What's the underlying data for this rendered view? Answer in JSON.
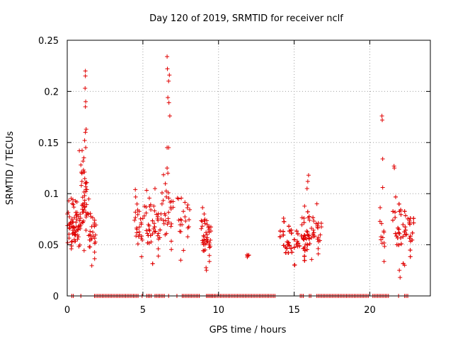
{
  "chart_data": {
    "type": "scatter",
    "title": "Day 120 of 2019, SRMTID for receiver nclf",
    "xlabel": "GPS time / hours",
    "ylabel": "SRMTID / TECUs",
    "xlim": [
      0,
      24
    ],
    "ylim": [
      0,
      0.25
    ],
    "xticks": [
      0,
      5,
      10,
      15,
      20
    ],
    "yticks": [
      0,
      0.05,
      0.1,
      0.15,
      0.2,
      0.25
    ],
    "xtick_labels": [
      "0",
      "5",
      "10",
      "15",
      "20"
    ],
    "ytick_labels": [
      "0",
      "0.05",
      "0.1",
      "0.15",
      "0.2",
      "0.25"
    ],
    "grid": true,
    "marker": "plus",
    "color": "#e00000",
    "clusters": [
      {
        "x_range": [
          0.0,
          0.9
        ],
        "y_center": 0.072,
        "y_spread": 0.02,
        "count": 70
      },
      {
        "x_range": [
          0.9,
          1.3
        ],
        "y_center": 0.09,
        "y_spread": 0.03,
        "count": 40
      },
      {
        "x_range": [
          1.3,
          1.9
        ],
        "y_center": 0.06,
        "y_spread": 0.02,
        "count": 30
      },
      {
        "x_range": [
          4.4,
          5.0
        ],
        "y_center": 0.062,
        "y_spread": 0.02,
        "count": 25
      },
      {
        "x_range": [
          5.0,
          6.2
        ],
        "y_center": 0.065,
        "y_spread": 0.022,
        "count": 55
      },
      {
        "x_range": [
          6.2,
          7.0
        ],
        "y_center": 0.075,
        "y_spread": 0.025,
        "count": 30
      },
      {
        "x_range": [
          7.2,
          8.1
        ],
        "y_center": 0.075,
        "y_spread": 0.02,
        "count": 22
      },
      {
        "x_range": [
          8.8,
          9.5
        ],
        "y_center": 0.055,
        "y_spread": 0.018,
        "count": 45
      },
      {
        "x_range": [
          11.8,
          12.0
        ],
        "y_center": 0.039,
        "y_spread": 0.001,
        "count": 3
      },
      {
        "x_range": [
          13.9,
          16.0
        ],
        "y_center": 0.05,
        "y_spread": 0.013,
        "count": 180
      },
      {
        "x_range": [
          15.4,
          16.8
        ],
        "y_center": 0.06,
        "y_spread": 0.016,
        "count": 50
      },
      {
        "x_range": [
          20.6,
          21.0
        ],
        "y_center": 0.055,
        "y_spread": 0.018,
        "count": 12
      },
      {
        "x_range": [
          21.4,
          22.9
        ],
        "y_center": 0.062,
        "y_spread": 0.02,
        "count": 90
      }
    ],
    "peaks": [
      {
        "x": 1.2,
        "y": 0.22
      },
      {
        "x": 1.2,
        "y": 0.215
      },
      {
        "x": 1.18,
        "y": 0.203
      },
      {
        "x": 1.22,
        "y": 0.19
      },
      {
        "x": 1.2,
        "y": 0.185
      },
      {
        "x": 1.25,
        "y": 0.163
      },
      {
        "x": 1.2,
        "y": 0.16
      },
      {
        "x": 1.15,
        "y": 0.152
      },
      {
        "x": 1.22,
        "y": 0.145
      },
      {
        "x": 0.8,
        "y": 0.142
      },
      {
        "x": 1.1,
        "y": 0.135
      },
      {
        "x": 0.9,
        "y": 0.128
      },
      {
        "x": 6.6,
        "y": 0.234
      },
      {
        "x": 6.62,
        "y": 0.222
      },
      {
        "x": 6.75,
        "y": 0.216
      },
      {
        "x": 6.7,
        "y": 0.21
      },
      {
        "x": 6.65,
        "y": 0.194
      },
      {
        "x": 6.72,
        "y": 0.189
      },
      {
        "x": 6.78,
        "y": 0.176
      },
      {
        "x": 6.6,
        "y": 0.145
      },
      {
        "x": 6.7,
        "y": 0.145
      },
      {
        "x": 6.6,
        "y": 0.125
      },
      {
        "x": 6.65,
        "y": 0.12
      },
      {
        "x": 15.95,
        "y": 0.118
      },
      {
        "x": 15.9,
        "y": 0.112
      },
      {
        "x": 15.85,
        "y": 0.105
      },
      {
        "x": 20.8,
        "y": 0.176
      },
      {
        "x": 20.82,
        "y": 0.172
      },
      {
        "x": 20.85,
        "y": 0.134
      },
      {
        "x": 20.85,
        "y": 0.106
      },
      {
        "x": 21.6,
        "y": 0.127
      },
      {
        "x": 21.62,
        "y": 0.125
      },
      {
        "x": 22.0,
        "y": 0.018
      },
      {
        "x": 21.95,
        "y": 0.025
      },
      {
        "x": 22.3,
        "y": 0.03
      },
      {
        "x": 9.2,
        "y": 0.025
      },
      {
        "x": 7.5,
        "y": 0.035
      },
      {
        "x": 12.0,
        "y": 0.04
      },
      {
        "x": 11.9,
        "y": 0.038
      },
      {
        "x": 14.3,
        "y": 0.076
      },
      {
        "x": 16.5,
        "y": 0.09
      },
      {
        "x": 5.8,
        "y": 0.105
      },
      {
        "x": 4.5,
        "y": 0.104
      },
      {
        "x": 0.1,
        "y": 0.093
      }
    ],
    "zero_segments": [
      [
        0.3,
        0.5
      ],
      [
        0.9,
        1.0
      ],
      [
        1.8,
        4.7
      ],
      [
        4.95,
        5.05
      ],
      [
        5.25,
        5.6
      ],
      [
        5.8,
        6.5
      ],
      [
        6.7,
        6.8
      ],
      [
        7.25,
        7.3
      ],
      [
        7.6,
        8.8
      ],
      [
        9.2,
        9.8
      ],
      [
        9.3,
        13.8
      ],
      [
        15.4,
        15.7
      ],
      [
        16.0,
        16.2
      ],
      [
        16.5,
        19.9
      ],
      [
        20.2,
        21.3
      ],
      [
        21.9,
        22.0
      ],
      [
        22.3,
        22.6
      ]
    ]
  }
}
